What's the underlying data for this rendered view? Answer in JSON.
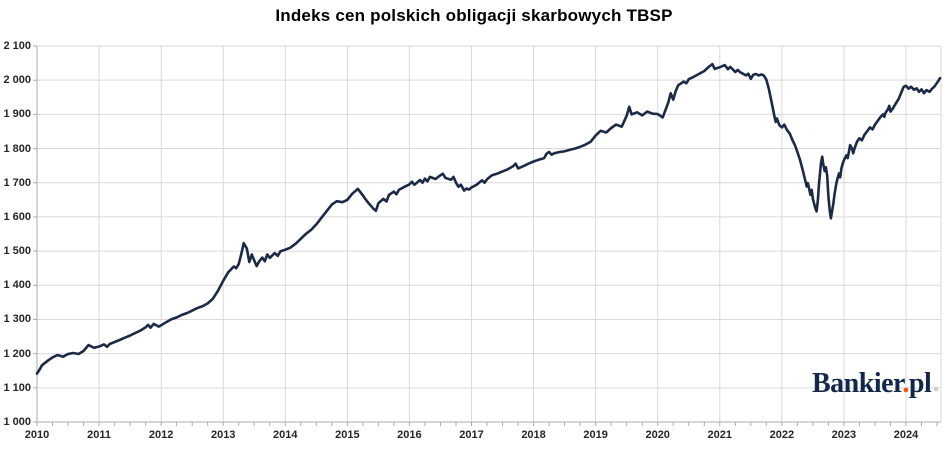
{
  "title": "Indeks cen polskich obligacji skarbowych TBSP",
  "logo": {
    "part1": "Bankier",
    "dot": ".",
    "part2": "pl"
  },
  "colors": {
    "line": "#1b2a47",
    "grid": "#d9d9d9",
    "axis": "#ababab",
    "title_text": "#000000",
    "tick_text": "#262626",
    "logo_navy": "#12284b",
    "logo_dot": "#ff4e00",
    "background": "#ffffff"
  },
  "chart_data": {
    "type": "line",
    "title": "Indeks cen polskich obligacji skarbowych TBSP",
    "xlabel": "",
    "ylabel": "",
    "grid": true,
    "legend": "none",
    "x_axis": {
      "range": [
        2010,
        2024.58
      ],
      "major_ticks": [
        2010,
        2011,
        2012,
        2013,
        2014,
        2015,
        2016,
        2017,
        2018,
        2019,
        2020,
        2021,
        2022,
        2023,
        2024
      ],
      "tick_labels": [
        "2010",
        "2011",
        "2012",
        "2013",
        "2014",
        "2015",
        "2016",
        "2017",
        "2018",
        "2019",
        "2020",
        "2021",
        "2022",
        "2023",
        "2024"
      ],
      "minor_tick_interval_years": 0.25
    },
    "y_axis": {
      "range": [
        1000,
        2100
      ],
      "major_ticks": [
        1000,
        1100,
        1200,
        1300,
        1400,
        1500,
        1600,
        1700,
        1800,
        1900,
        2000,
        2100
      ],
      "tick_labels": [
        "1 000",
        "1 100",
        "1 200",
        "1 300",
        "1 400",
        "1 500",
        "1 600",
        "1 700",
        "1 800",
        "1 900",
        "2 000",
        "2 100"
      ]
    },
    "series": [
      {
        "name": "TBSP",
        "points": [
          [
            2010.0,
            1142
          ],
          [
            2010.04,
            1153
          ],
          [
            2010.08,
            1166
          ],
          [
            2010.17,
            1179
          ],
          [
            2010.25,
            1189
          ],
          [
            2010.33,
            1196
          ],
          [
            2010.42,
            1191
          ],
          [
            2010.5,
            1199
          ],
          [
            2010.58,
            1202
          ],
          [
            2010.67,
            1199
          ],
          [
            2010.75,
            1208
          ],
          [
            2010.83,
            1225
          ],
          [
            2010.92,
            1217
          ],
          [
            2011.0,
            1221
          ],
          [
            2011.08,
            1227
          ],
          [
            2011.13,
            1220
          ],
          [
            2011.17,
            1228
          ],
          [
            2011.25,
            1234
          ],
          [
            2011.33,
            1240
          ],
          [
            2011.42,
            1247
          ],
          [
            2011.5,
            1253
          ],
          [
            2011.58,
            1260
          ],
          [
            2011.67,
            1268
          ],
          [
            2011.75,
            1277
          ],
          [
            2011.79,
            1284
          ],
          [
            2011.83,
            1276
          ],
          [
            2011.88,
            1287
          ],
          [
            2011.96,
            1279
          ],
          [
            2012.0,
            1283
          ],
          [
            2012.08,
            1292
          ],
          [
            2012.17,
            1301
          ],
          [
            2012.25,
            1306
          ],
          [
            2012.33,
            1313
          ],
          [
            2012.42,
            1319
          ],
          [
            2012.5,
            1326
          ],
          [
            2012.58,
            1333
          ],
          [
            2012.67,
            1339
          ],
          [
            2012.75,
            1347
          ],
          [
            2012.83,
            1360
          ],
          [
            2012.92,
            1385
          ],
          [
            2013.0,
            1413
          ],
          [
            2013.08,
            1438
          ],
          [
            2013.17,
            1455
          ],
          [
            2013.21,
            1450
          ],
          [
            2013.25,
            1462
          ],
          [
            2013.29,
            1490
          ],
          [
            2013.33,
            1523
          ],
          [
            2013.38,
            1508
          ],
          [
            2013.42,
            1468
          ],
          [
            2013.46,
            1490
          ],
          [
            2013.5,
            1472
          ],
          [
            2013.54,
            1456
          ],
          [
            2013.58,
            1470
          ],
          [
            2013.63,
            1481
          ],
          [
            2013.67,
            1470
          ],
          [
            2013.71,
            1490
          ],
          [
            2013.75,
            1480
          ],
          [
            2013.83,
            1494
          ],
          [
            2013.88,
            1486
          ],
          [
            2013.92,
            1499
          ],
          [
            2014.0,
            1504
          ],
          [
            2014.08,
            1510
          ],
          [
            2014.17,
            1522
          ],
          [
            2014.25,
            1536
          ],
          [
            2014.33,
            1550
          ],
          [
            2014.42,
            1563
          ],
          [
            2014.5,
            1578
          ],
          [
            2014.58,
            1597
          ],
          [
            2014.67,
            1618
          ],
          [
            2014.75,
            1636
          ],
          [
            2014.83,
            1646
          ],
          [
            2014.92,
            1643
          ],
          [
            2015.0,
            1650
          ],
          [
            2015.08,
            1668
          ],
          [
            2015.17,
            1682
          ],
          [
            2015.25,
            1663
          ],
          [
            2015.29,
            1652
          ],
          [
            2015.33,
            1643
          ],
          [
            2015.42,
            1624
          ],
          [
            2015.46,
            1618
          ],
          [
            2015.5,
            1640
          ],
          [
            2015.58,
            1653
          ],
          [
            2015.63,
            1645
          ],
          [
            2015.67,
            1664
          ],
          [
            2015.75,
            1674
          ],
          [
            2015.79,
            1666
          ],
          [
            2015.83,
            1679
          ],
          [
            2015.92,
            1688
          ],
          [
            2016.0,
            1695
          ],
          [
            2016.04,
            1703
          ],
          [
            2016.08,
            1694
          ],
          [
            2016.17,
            1708
          ],
          [
            2016.21,
            1700
          ],
          [
            2016.25,
            1712
          ],
          [
            2016.29,
            1704
          ],
          [
            2016.33,
            1717
          ],
          [
            2016.42,
            1711
          ],
          [
            2016.5,
            1722
          ],
          [
            2016.54,
            1726
          ],
          [
            2016.58,
            1714
          ],
          [
            2016.67,
            1709
          ],
          [
            2016.71,
            1717
          ],
          [
            2016.75,
            1700
          ],
          [
            2016.79,
            1688
          ],
          [
            2016.83,
            1694
          ],
          [
            2016.88,
            1677
          ],
          [
            2016.92,
            1683
          ],
          [
            2016.96,
            1680
          ],
          [
            2017.0,
            1686
          ],
          [
            2017.08,
            1694
          ],
          [
            2017.17,
            1707
          ],
          [
            2017.21,
            1700
          ],
          [
            2017.25,
            1710
          ],
          [
            2017.33,
            1722
          ],
          [
            2017.42,
            1727
          ],
          [
            2017.5,
            1733
          ],
          [
            2017.58,
            1739
          ],
          [
            2017.67,
            1748
          ],
          [
            2017.71,
            1756
          ],
          [
            2017.75,
            1742
          ],
          [
            2017.83,
            1748
          ],
          [
            2017.92,
            1756
          ],
          [
            2018.0,
            1762
          ],
          [
            2018.08,
            1767
          ],
          [
            2018.17,
            1772
          ],
          [
            2018.21,
            1785
          ],
          [
            2018.25,
            1790
          ],
          [
            2018.29,
            1782
          ],
          [
            2018.33,
            1786
          ],
          [
            2018.42,
            1790
          ],
          [
            2018.5,
            1792
          ],
          [
            2018.58,
            1796
          ],
          [
            2018.67,
            1800
          ],
          [
            2018.75,
            1805
          ],
          [
            2018.83,
            1811
          ],
          [
            2018.92,
            1820
          ],
          [
            2019.0,
            1838
          ],
          [
            2019.08,
            1852
          ],
          [
            2019.17,
            1847
          ],
          [
            2019.25,
            1860
          ],
          [
            2019.33,
            1870
          ],
          [
            2019.42,
            1864
          ],
          [
            2019.5,
            1896
          ],
          [
            2019.54,
            1922
          ],
          [
            2019.58,
            1900
          ],
          [
            2019.67,
            1906
          ],
          [
            2019.75,
            1897
          ],
          [
            2019.83,
            1908
          ],
          [
            2019.92,
            1902
          ],
          [
            2020.0,
            1901
          ],
          [
            2020.08,
            1891
          ],
          [
            2020.17,
            1935
          ],
          [
            2020.21,
            1962
          ],
          [
            2020.25,
            1943
          ],
          [
            2020.29,
            1968
          ],
          [
            2020.33,
            1985
          ],
          [
            2020.42,
            1996
          ],
          [
            2020.46,
            1991
          ],
          [
            2020.5,
            2003
          ],
          [
            2020.58,
            2010
          ],
          [
            2020.67,
            2019
          ],
          [
            2020.75,
            2027
          ],
          [
            2020.83,
            2040
          ],
          [
            2020.88,
            2047
          ],
          [
            2020.92,
            2033
          ],
          [
            2021.0,
            2038
          ],
          [
            2021.08,
            2044
          ],
          [
            2021.13,
            2032
          ],
          [
            2021.17,
            2039
          ],
          [
            2021.25,
            2024
          ],
          [
            2021.29,
            2030
          ],
          [
            2021.33,
            2023
          ],
          [
            2021.42,
            2014
          ],
          [
            2021.46,
            2019
          ],
          [
            2021.5,
            2004
          ],
          [
            2021.54,
            2016
          ],
          [
            2021.58,
            2018
          ],
          [
            2021.63,
            2014
          ],
          [
            2021.67,
            2017
          ],
          [
            2021.71,
            2013
          ],
          [
            2021.75,
            2002
          ],
          [
            2021.79,
            1975
          ],
          [
            2021.83,
            1940
          ],
          [
            2021.88,
            1895
          ],
          [
            2021.9,
            1878
          ],
          [
            2021.92,
            1888
          ],
          [
            2021.96,
            1868
          ],
          [
            2022.0,
            1862
          ],
          [
            2022.04,
            1870
          ],
          [
            2022.08,
            1855
          ],
          [
            2022.13,
            1843
          ],
          [
            2022.17,
            1825
          ],
          [
            2022.21,
            1810
          ],
          [
            2022.25,
            1790
          ],
          [
            2022.29,
            1768
          ],
          [
            2022.33,
            1742
          ],
          [
            2022.38,
            1705
          ],
          [
            2022.4,
            1689
          ],
          [
            2022.42,
            1699
          ],
          [
            2022.46,
            1665
          ],
          [
            2022.48,
            1679
          ],
          [
            2022.5,
            1652
          ],
          [
            2022.54,
            1625
          ],
          [
            2022.56,
            1616
          ],
          [
            2022.58,
            1650
          ],
          [
            2022.6,
            1700
          ],
          [
            2022.63,
            1758
          ],
          [
            2022.65,
            1776
          ],
          [
            2022.67,
            1752
          ],
          [
            2022.69,
            1734
          ],
          [
            2022.71,
            1745
          ],
          [
            2022.73,
            1720
          ],
          [
            2022.75,
            1660
          ],
          [
            2022.77,
            1620
          ],
          [
            2022.79,
            1596
          ],
          [
            2022.83,
            1640
          ],
          [
            2022.85,
            1668
          ],
          [
            2022.88,
            1700
          ],
          [
            2022.9,
            1714
          ],
          [
            2022.92,
            1727
          ],
          [
            2022.94,
            1716
          ],
          [
            2022.96,
            1742
          ],
          [
            2022.98,
            1756
          ],
          [
            2023.0,
            1766
          ],
          [
            2023.04,
            1780
          ],
          [
            2023.06,
            1772
          ],
          [
            2023.08,
            1790
          ],
          [
            2023.1,
            1810
          ],
          [
            2023.13,
            1800
          ],
          [
            2023.15,
            1786
          ],
          [
            2023.17,
            1800
          ],
          [
            2023.21,
            1820
          ],
          [
            2023.25,
            1830
          ],
          [
            2023.29,
            1824
          ],
          [
            2023.33,
            1840
          ],
          [
            2023.38,
            1852
          ],
          [
            2023.42,
            1862
          ],
          [
            2023.46,
            1856
          ],
          [
            2023.5,
            1870
          ],
          [
            2023.54,
            1880
          ],
          [
            2023.58,
            1890
          ],
          [
            2023.63,
            1900
          ],
          [
            2023.65,
            1893
          ],
          [
            2023.67,
            1905
          ],
          [
            2023.71,
            1915
          ],
          [
            2023.73,
            1925
          ],
          [
            2023.75,
            1908
          ],
          [
            2023.79,
            1918
          ],
          [
            2023.83,
            1930
          ],
          [
            2023.88,
            1945
          ],
          [
            2023.92,
            1962
          ],
          [
            2023.96,
            1980
          ],
          [
            2024.0,
            1984
          ],
          [
            2024.04,
            1975
          ],
          [
            2024.08,
            1981
          ],
          [
            2024.13,
            1972
          ],
          [
            2024.17,
            1976
          ],
          [
            2024.21,
            1966
          ],
          [
            2024.25,
            1973
          ],
          [
            2024.29,
            1962
          ],
          [
            2024.33,
            1971
          ],
          [
            2024.38,
            1966
          ],
          [
            2024.42,
            1975
          ],
          [
            2024.46,
            1982
          ],
          [
            2024.5,
            1992
          ],
          [
            2024.55,
            2006
          ]
        ]
      }
    ]
  }
}
